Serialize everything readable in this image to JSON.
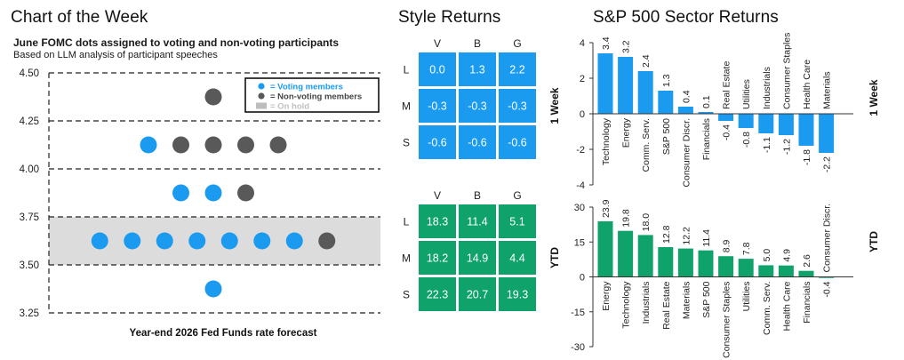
{
  "header": {
    "main_title": "Chart of the Week",
    "style_title": "Style Returns",
    "sector_title": "S&P 500 Sector Returns"
  },
  "chart_data": [
    {
      "type": "scatter",
      "title": "June FOMC dots assigned to voting and non-voting participants",
      "subtitle": "Based on LLM analysis of participant speeches",
      "xlabel": "Year-end 2026 Fed Funds rate forecast",
      "ylim": [
        3.25,
        4.5
      ],
      "yticks": [
        "4.50",
        "4.25",
        "4.00",
        "3.75",
        "3.50",
        "3.25"
      ],
      "grid": true,
      "legend_position": "top-right",
      "legend": [
        "= Voting members",
        "= Non-voting members",
        "= On hold"
      ],
      "hold_band": [
        3.5,
        3.75
      ],
      "colors": {
        "voting": "#1a9bf0",
        "nonvoting": "#595959",
        "hold": "#dcdcdc"
      },
      "rows": [
        {
          "rate": 4.375,
          "voting": 0,
          "nonvoting": 1
        },
        {
          "rate": 4.125,
          "voting": 1,
          "nonvoting": 4
        },
        {
          "rate": 3.875,
          "voting": 2,
          "nonvoting": 1
        },
        {
          "rate": 3.625,
          "voting": 7,
          "nonvoting": 1
        },
        {
          "rate": 3.375,
          "voting": 1,
          "nonvoting": 0
        }
      ]
    },
    {
      "type": "heatmap",
      "title": "Style Returns",
      "side_label": "1 Week",
      "columns": [
        "V",
        "B",
        "G"
      ],
      "rows": [
        "L",
        "M",
        "S"
      ],
      "color": "#1a9bf0",
      "values": [
        [
          "0.0",
          "1.3",
          "2.2"
        ],
        [
          "-0.3",
          "-0.3",
          "-0.3"
        ],
        [
          "-0.6",
          "-0.6",
          "-0.6"
        ]
      ]
    },
    {
      "type": "heatmap",
      "title": "Style Returns",
      "side_label": "YTD",
      "columns": [
        "V",
        "B",
        "G"
      ],
      "rows": [
        "L",
        "M",
        "S"
      ],
      "color": "#0fa36b",
      "values": [
        [
          "18.3",
          "11.4",
          "5.1"
        ],
        [
          "18.2",
          "14.9",
          "4.4"
        ],
        [
          "22.3",
          "20.7",
          "19.3"
        ]
      ]
    },
    {
      "type": "bar",
      "title": "S&P 500 Sector Returns",
      "side_label": "1 Week",
      "color": "#1a9bf0",
      "ylim": [
        -4,
        4
      ],
      "yticks": [
        "4",
        "2",
        "0",
        "-2",
        "-4"
      ],
      "categories": [
        "Technology",
        "Energy",
        "Comm. Serv.",
        "S&P 500",
        "Consumer Discr.",
        "Financials",
        "Real Estate",
        "Utilities",
        "Industrials",
        "Consumer Staples",
        "Health Care",
        "Materials"
      ],
      "values": [
        3.4,
        3.2,
        2.4,
        1.3,
        0.4,
        0.1,
        -0.4,
        -0.8,
        -1.1,
        -1.2,
        -1.8,
        -2.2
      ],
      "labels": [
        "3.4",
        "3.2",
        "2.4",
        "1.3",
        "0.4",
        "0.1",
        "-0.4",
        "-0.8",
        "-1.1",
        "-1.2",
        "-1.8",
        "-2.2"
      ]
    },
    {
      "type": "bar",
      "title": "S&P 500 Sector Returns",
      "side_label": "YTD",
      "color": "#0fa36b",
      "ylim": [
        -30,
        30
      ],
      "yticks": [
        "30",
        "15",
        "0",
        "-15",
        "-30"
      ],
      "categories": [
        "Energy",
        "Technology",
        "Industrials",
        "Real Estate",
        "Materials",
        "S&P 500",
        "Consumer Staples",
        "Utilities",
        "Comm. Serv.",
        "Health Care",
        "Financials",
        "Consumer Discr."
      ],
      "values": [
        23.9,
        19.8,
        18.0,
        12.8,
        12.2,
        11.4,
        8.9,
        7.8,
        5.0,
        4.9,
        2.6,
        -0.4
      ],
      "labels": [
        "23.9",
        "19.8",
        "18.0",
        "12.8",
        "12.2",
        "11.4",
        "8.9",
        "7.8",
        "5.0",
        "4.9",
        "2.6",
        "-0.4"
      ]
    }
  ]
}
